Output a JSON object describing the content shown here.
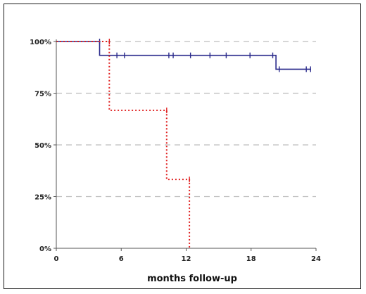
{
  "chart_data": {
    "type": "line",
    "title": "",
    "xlabel": "months follow-up",
    "ylabel": "",
    "xlim": [
      0,
      24
    ],
    "ylim": [
      0,
      100
    ],
    "x_ticks": [
      0,
      6,
      12,
      18,
      24
    ],
    "y_ticks": [
      0,
      25,
      50,
      75,
      100
    ],
    "x_tick_labels": [
      "0",
      "6",
      "12",
      "18",
      "24"
    ],
    "y_tick_labels": [
      "0%",
      "25%",
      "50%",
      "75%",
      "100%"
    ],
    "grid": "horizontal dashed",
    "step": true,
    "series": [
      {
        "color": "#2b2b8c",
        "dash": "solid",
        "steps": [
          [
            0,
            100
          ],
          [
            4,
            100
          ],
          [
            4,
            93.3
          ],
          [
            20.3,
            93.3
          ],
          [
            20.3,
            86.6
          ],
          [
            23.5,
            86.6
          ]
        ],
        "censored": [
          [
            4.0,
            100
          ],
          [
            5.6,
            93.3
          ],
          [
            6.3,
            93.3
          ],
          [
            10.4,
            93.3
          ],
          [
            10.8,
            93.3
          ],
          [
            12.4,
            93.3
          ],
          [
            14.2,
            93.3
          ],
          [
            15.7,
            93.3
          ],
          [
            17.9,
            93.3
          ],
          [
            20.0,
            93.3
          ],
          [
            20.6,
            86.6
          ],
          [
            23.1,
            86.6
          ],
          [
            23.5,
            86.6
          ]
        ]
      },
      {
        "color": "#e02020",
        "dash": "dotted",
        "steps": [
          [
            0,
            100
          ],
          [
            4.9,
            100
          ],
          [
            4.9,
            66.7
          ],
          [
            10.2,
            66.7
          ],
          [
            10.2,
            33.3
          ],
          [
            12.3,
            33.3
          ],
          [
            12.3,
            0
          ]
        ],
        "censored": [
          [
            4.9,
            100
          ],
          [
            10.2,
            66.7
          ],
          [
            12.3,
            33.3
          ]
        ]
      }
    ]
  }
}
